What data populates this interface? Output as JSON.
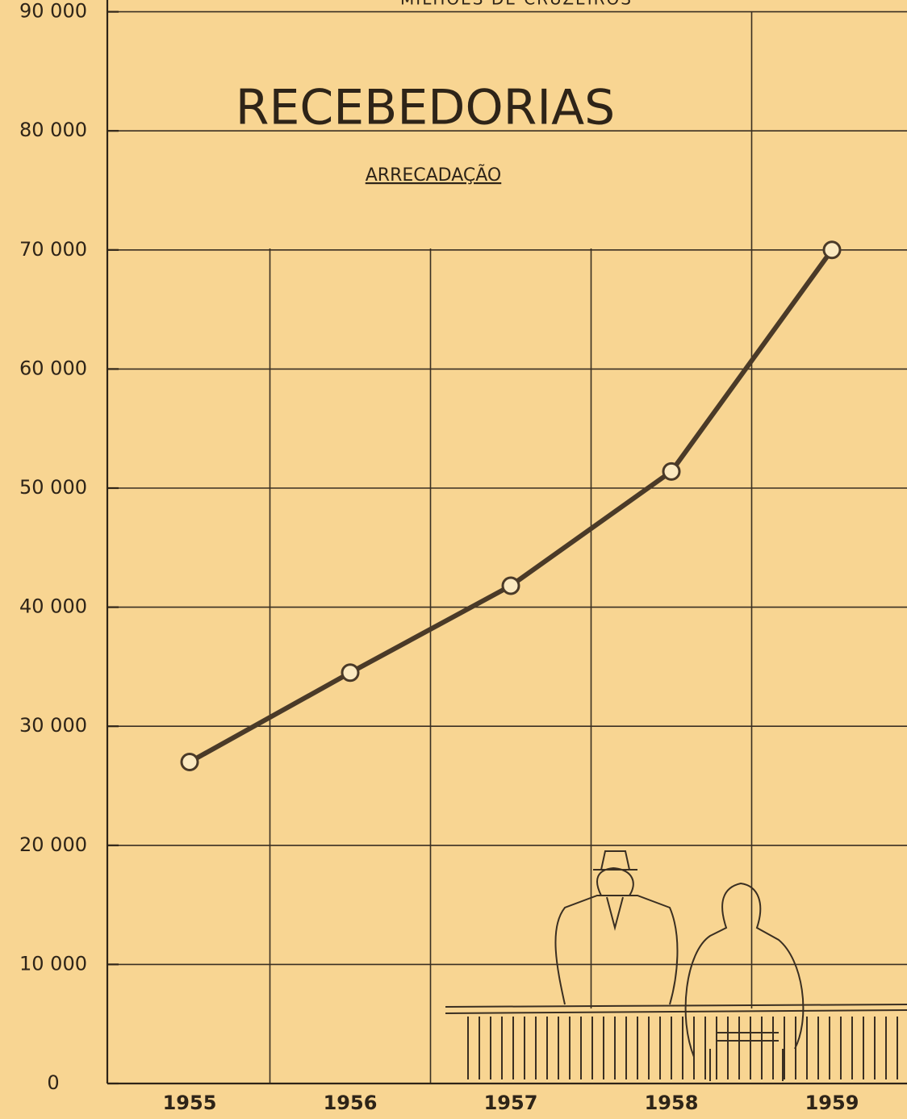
{
  "chart_data": {
    "type": "line",
    "title": "RECEBEDORIAS",
    "subtitle": "ARRECADAÇÃO",
    "y_axis_label": "MILHÕES DE CRUZEIROS",
    "categories": [
      "1955",
      "1956",
      "1957",
      "1958",
      "1959"
    ],
    "values": [
      27000,
      34500,
      41800,
      51400,
      70000
    ],
    "color": "#4a3a28",
    "ylim": [
      0,
      90000
    ],
    "yticks": [
      0,
      {
        "value": 10000,
        "label": "10 000"
      },
      {
        "value": 20000,
        "label": "20 000"
      },
      {
        "value": 30000,
        "label": "30 000"
      },
      {
        "value": 40000,
        "label": "40 000"
      },
      {
        "value": 50000,
        "label": "50 000"
      },
      {
        "value": 60000,
        "label": "60 000"
      },
      {
        "value": 70000,
        "label": "70 000"
      },
      {
        "value": 80000,
        "label": "80 000"
      },
      {
        "value": 90000,
        "label": "90 000"
      }
    ],
    "grid": true
  }
}
